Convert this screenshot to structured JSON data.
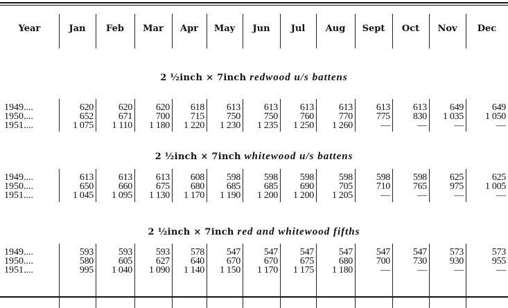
{
  "headers": [
    "Year",
    "Jan",
    "Feb",
    "Mar",
    "Apr",
    "May",
    "Jun",
    "Jul",
    "Aug",
    "Sept",
    "Oct",
    "Nov",
    "Dec"
  ],
  "sections": [
    {
      "title_prefix": "2 ½inch × 7inch",
      "title_item": "redwood u/s battens",
      "rows": [
        {
          "year": "1949....",
          "values": [
            "620",
            "620",
            "620",
            "618",
            "613",
            "613",
            "613",
            "613",
            "613",
            "613",
            "649",
            "649"
          ]
        },
        {
          "year": "1950....",
          "values": [
            "652",
            "671",
            "700",
            "715",
            "750",
            "750",
            "760",
            "770",
            "775",
            "830",
            "1 035",
            "1 050"
          ]
        },
        {
          "year": "1951....",
          "values": [
            "1 075",
            "1 110",
            "1 180",
            "1 220",
            "1 230",
            "1 235",
            "1 250",
            "1 260",
            "—",
            "—",
            "—",
            "—"
          ]
        }
      ]
    },
    {
      "title_prefix": "2 ½inch × 7inch",
      "title_item": "whitewood u/s battens",
      "rows": [
        {
          "year": "1949....",
          "values": [
            "613",
            "613",
            "613",
            "608",
            "598",
            "598",
            "598",
            "598",
            "598",
            "598",
            "625",
            "625"
          ]
        },
        {
          "year": "1950....",
          "values": [
            "650",
            "660",
            "675",
            "680",
            "685",
            "685",
            "690",
            "705",
            "710",
            "765",
            "975",
            "1 005"
          ]
        },
        {
          "year": "1951....",
          "values": [
            "1 045",
            "1 095",
            "1 130",
            "1 170",
            "1 190",
            "1 200",
            "1 200",
            "1 205",
            "—",
            "—",
            "—",
            "—"
          ]
        }
      ]
    },
    {
      "title_prefix": "2 ½inch × 7inch",
      "title_item": "red and whitewood fifths",
      "rows": [
        {
          "year": "1949....",
          "values": [
            "593",
            "593",
            "593",
            "578",
            "547",
            "547",
            "547",
            "547",
            "547",
            "547",
            "573",
            "573"
          ]
        },
        {
          "year": "1950....",
          "values": [
            "580",
            "605",
            "627",
            "640",
            "670",
            "670",
            "675",
            "680",
            "700",
            "730",
            "930",
            "955"
          ]
        },
        {
          "year": "1951....",
          "values": [
            "995",
            "1 040",
            "1 090",
            "1 140",
            "1 150",
            "1 170",
            "1 175",
            "1 180",
            "—",
            "—",
            "—",
            "—"
          ]
        }
      ]
    }
  ]
}
